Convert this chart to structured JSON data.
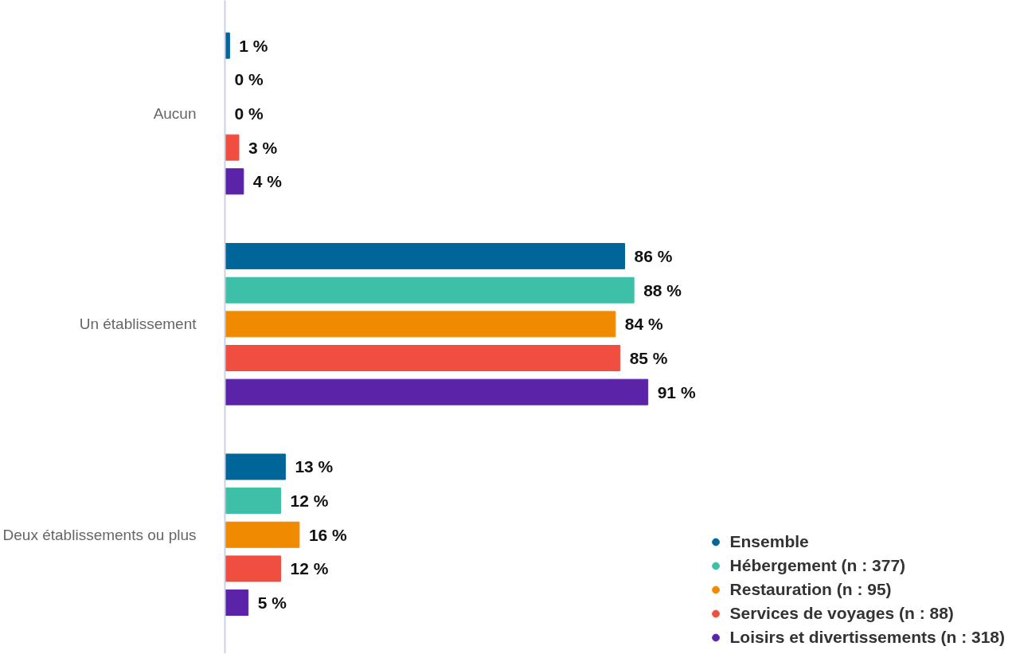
{
  "chart_data": {
    "type": "bar",
    "orientation": "horizontal",
    "categories": [
      "Aucun",
      "Un établissement",
      "Deux établissements ou plus"
    ],
    "series": [
      {
        "name": "Ensemble",
        "color": "#00669a",
        "values": [
          1,
          86,
          13
        ],
        "value_labels": [
          "1 %",
          "86 %",
          "13 %"
        ]
      },
      {
        "name": "Hébergement (n : 377)",
        "color": "#3dbfa8",
        "values": [
          0,
          88,
          12
        ],
        "value_labels": [
          "0 %",
          "88 %",
          "12 %"
        ]
      },
      {
        "name": "Restauration (n : 95)",
        "color": "#f08a00",
        "values": [
          0,
          84,
          16
        ],
        "value_labels": [
          "0 %",
          "84 %",
          "16 %"
        ]
      },
      {
        "name": "Services de voyages (n : 88)",
        "color": "#f04e40",
        "values": [
          3,
          85,
          12
        ],
        "value_labels": [
          "3 %",
          "85 %",
          "12 %"
        ]
      },
      {
        "name": "Loisirs et divertissements (n : 318)",
        "color": "#5b24a8",
        "values": [
          4,
          91,
          5
        ],
        "value_labels": [
          "4 %",
          "91 %",
          "5 %"
        ]
      }
    ],
    "legend": "bottom right",
    "grid": false,
    "marker": "circle"
  }
}
